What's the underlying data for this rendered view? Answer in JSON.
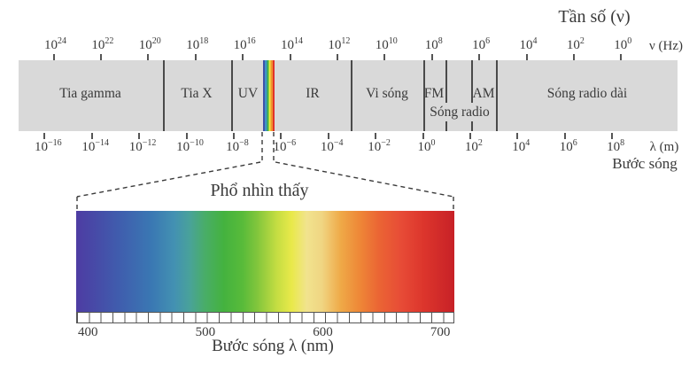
{
  "frequency_axis": {
    "title": "Tần số (ν)",
    "unit": "ν (Hz)",
    "base": "10",
    "exponents": [
      "24",
      "22",
      "20",
      "18",
      "16",
      "14",
      "12",
      "10",
      "8",
      "6",
      "4",
      "2",
      "0"
    ]
  },
  "wavelength_axis": {
    "unit": "λ (m)",
    "caption": "Bước sóng",
    "base": "10",
    "exponents": [
      "−16",
      "−14",
      "−12",
      "−10",
      "−8",
      "−6",
      "−4",
      "−2",
      "0",
      "2",
      "4",
      "6",
      "8"
    ]
  },
  "em_band": {
    "regions": [
      {
        "id": "gamma",
        "label": "Tia gamma"
      },
      {
        "id": "xray",
        "label": "Tia X"
      },
      {
        "id": "uv",
        "label": "UV"
      },
      {
        "id": "ir",
        "label": "IR"
      },
      {
        "id": "microwave",
        "label": "Vi sóng"
      },
      {
        "id": "fm",
        "label": "FM"
      },
      {
        "id": "am",
        "label": "AM"
      },
      {
        "id": "radio",
        "label": "Sóng radio"
      },
      {
        "id": "long-radio",
        "label": "Sóng radio dài"
      }
    ],
    "visible_strip_colors": [
      "#3e52aa",
      "#3e93c6",
      "#3eae48",
      "#efe93c",
      "#f0922f",
      "#e23228"
    ]
  },
  "visible_spectrum": {
    "title": "Phổ nhìn thấy",
    "axis_caption": "Bước sóng λ (nm)",
    "tick_labels": [
      "400",
      "500",
      "600",
      "700"
    ],
    "range_nm": [
      390,
      712
    ],
    "gradient_stops": [
      {
        "at": 0.0,
        "color": "#4e3ca3"
      },
      {
        "at": 0.05,
        "color": "#474aa7"
      },
      {
        "at": 0.12,
        "color": "#3f5fae"
      },
      {
        "at": 0.2,
        "color": "#3a78b3"
      },
      {
        "at": 0.26,
        "color": "#4391b2"
      },
      {
        "at": 0.3,
        "color": "#49a29a"
      },
      {
        "at": 0.34,
        "color": "#49ad68"
      },
      {
        "at": 0.39,
        "color": "#44b23f"
      },
      {
        "at": 0.44,
        "color": "#58bb3a"
      },
      {
        "at": 0.48,
        "color": "#83c63c"
      },
      {
        "at": 0.53,
        "color": "#c4dd42"
      },
      {
        "at": 0.57,
        "color": "#e9e94a"
      },
      {
        "at": 0.61,
        "color": "#f1e38e"
      },
      {
        "at": 0.65,
        "color": "#f0d582"
      },
      {
        "at": 0.7,
        "color": "#efa947"
      },
      {
        "at": 0.75,
        "color": "#ee8737"
      },
      {
        "at": 0.8,
        "color": "#eb6534"
      },
      {
        "at": 0.86,
        "color": "#e74b36"
      },
      {
        "at": 0.92,
        "color": "#dc352c"
      },
      {
        "at": 1.0,
        "color": "#c72127"
      }
    ]
  },
  "colors": {
    "band_fill": "#d9d9d9",
    "divider": "#4a4a4a",
    "text": "#3a3a3a",
    "ruler_line": "#555555",
    "dash": "#3a3a3a"
  }
}
